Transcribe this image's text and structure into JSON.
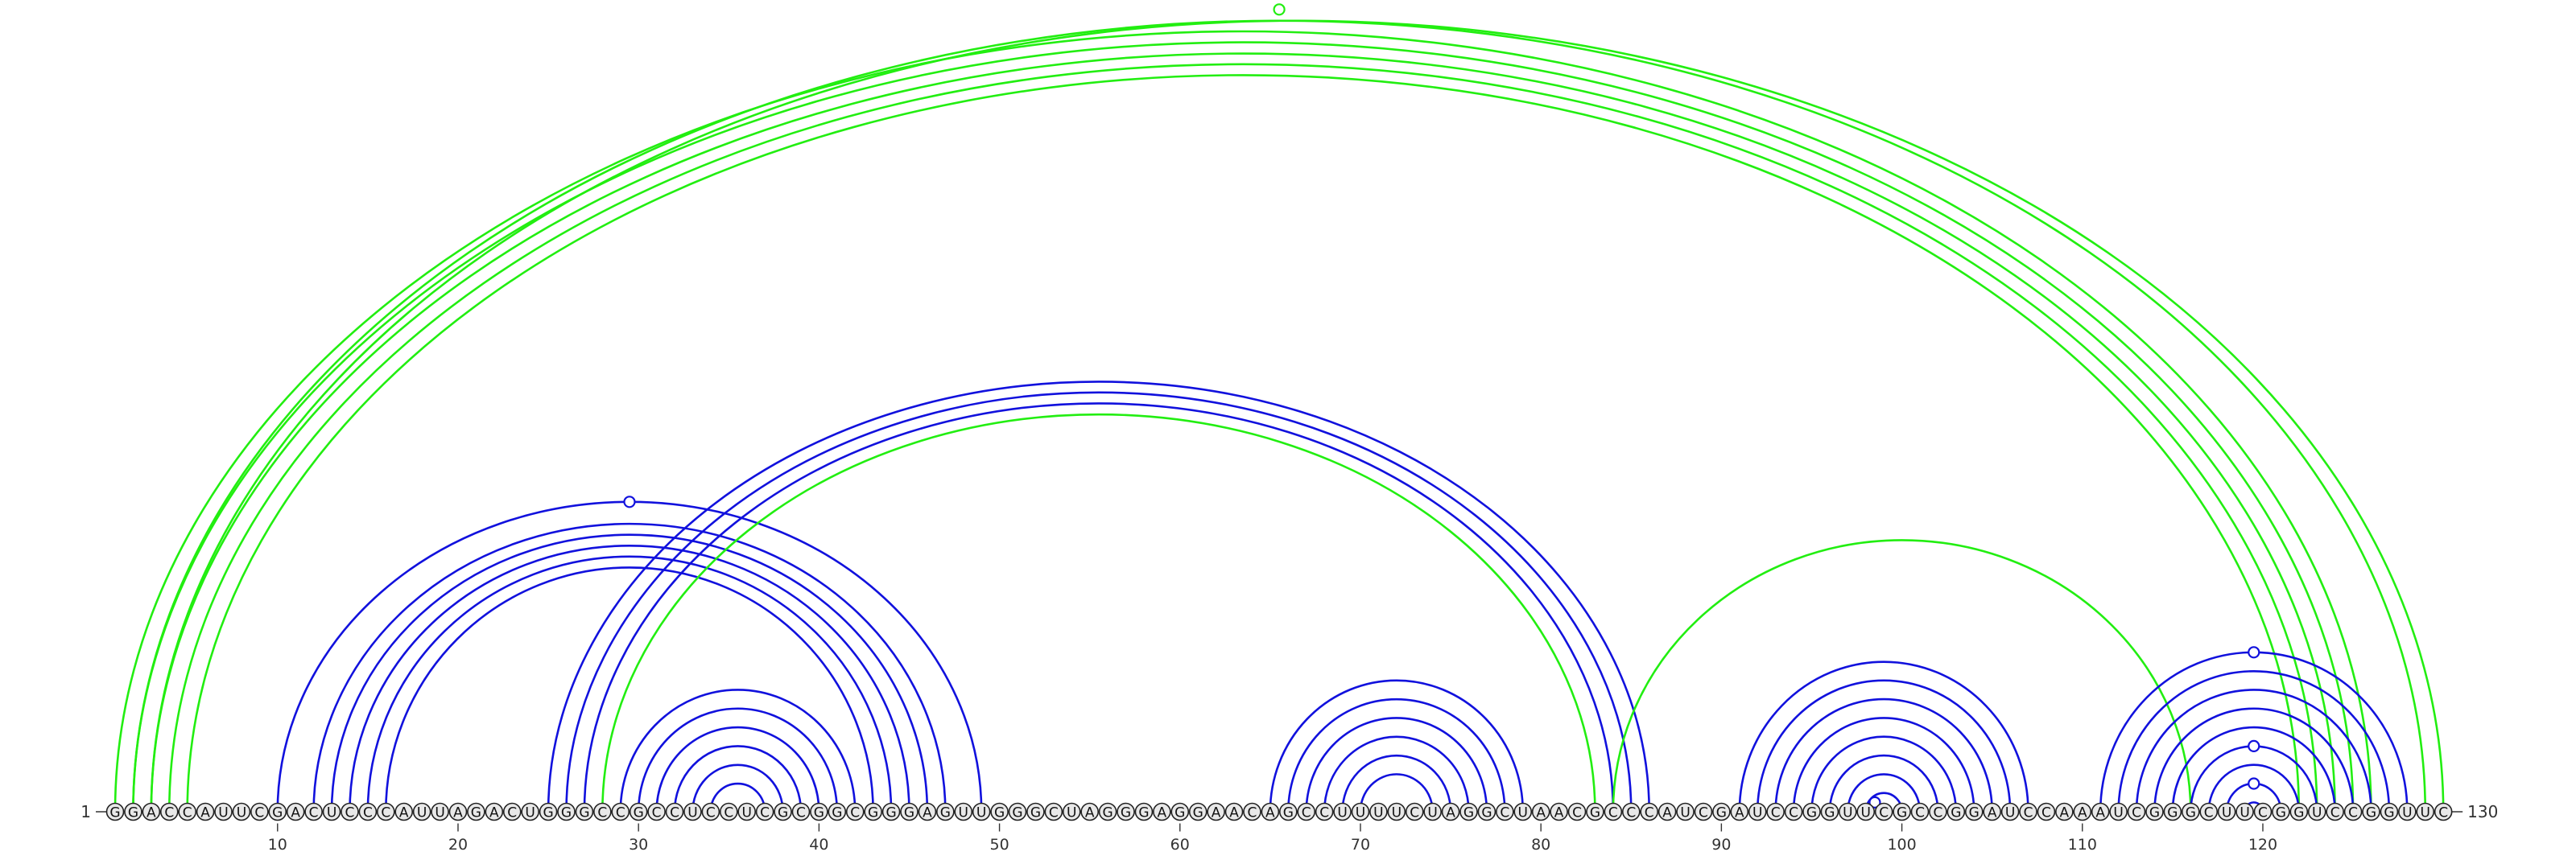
{
  "diagram": {
    "sequence": "GGACCAUUCGACUCCCAUUAGACUGGGCCGCCUCCUCGCGGCGGGAGUUGGGCUAGGGAGGAACAGCCUUUUCUAGGCUAACGCCCAUCGAUCCGGUUCGCCGGAUCCAAAUCGGGCUUCGGUCCGGUUC",
    "start_label": "1",
    "end_label": "130",
    "tick_labels": [
      "10",
      "20",
      "30",
      "40",
      "50",
      "60",
      "70",
      "80",
      "90",
      "100",
      "110",
      "120"
    ],
    "colors": {
      "green": "#22ee11",
      "blue": "#1111dd",
      "nucleotide_fill": "#e8e8e8",
      "nucleotide_stroke": "#222222"
    },
    "arc_groups": [
      {
        "color": "green",
        "arcs": [
          [
            1,
            126
          ],
          [
            2,
            125
          ],
          [
            3,
            124
          ],
          [
            4,
            123
          ],
          [
            5,
            122
          ]
        ]
      },
      {
        "color": "green",
        "arcs": [
          [
            2,
            129
          ],
          [
            3,
            130
          ]
        ]
      },
      {
        "color": "blue",
        "arcs": [
          [
            10,
            49
          ],
          [
            12,
            47
          ],
          [
            13,
            46
          ],
          [
            14,
            45
          ],
          [
            15,
            44
          ],
          [
            16,
            43
          ]
        ]
      },
      {
        "color": "blue",
        "arcs": [
          [
            25,
            86
          ],
          [
            26,
            85
          ],
          [
            27,
            84
          ]
        ]
      },
      {
        "color": "green",
        "arcs": [
          [
            28,
            83
          ]
        ]
      },
      {
        "color": "green",
        "arcs": [
          [
            84,
            116
          ]
        ]
      },
      {
        "color": "blue",
        "arcs": [
          [
            29,
            42
          ],
          [
            30,
            41
          ],
          [
            31,
            40
          ],
          [
            32,
            39
          ],
          [
            33,
            38
          ],
          [
            34,
            37
          ]
        ]
      },
      {
        "color": "blue",
        "arcs": [
          [
            65,
            79
          ],
          [
            66,
            78
          ],
          [
            67,
            77
          ],
          [
            68,
            76
          ],
          [
            69,
            75
          ],
          [
            70,
            74
          ]
        ]
      },
      {
        "color": "blue",
        "arcs": [
          [
            91,
            107
          ],
          [
            92,
            106
          ],
          [
            93,
            105
          ],
          [
            94,
            104
          ],
          [
            95,
            103
          ],
          [
            96,
            102
          ],
          [
            97,
            101
          ],
          [
            98,
            100
          ]
        ]
      },
      {
        "color": "blue",
        "arcs": [
          [
            111,
            128
          ],
          [
            112,
            127
          ],
          [
            113,
            126
          ],
          [
            114,
            125
          ],
          [
            115,
            124
          ],
          [
            116,
            123
          ],
          [
            117,
            122
          ],
          [
            118,
            121
          ],
          [
            119,
            120
          ]
        ]
      }
    ],
    "markers": [
      {
        "color": "green",
        "pos": 65.5,
        "arc": [
          1,
          130
        ]
      },
      {
        "color": "blue",
        "pos": 29.5,
        "arc": [
          10,
          49
        ]
      },
      {
        "color": "blue",
        "pos": 98.5,
        "arc": [
          98,
          99
        ]
      },
      {
        "color": "blue",
        "pos": 119.5,
        "arc": [
          111,
          128
        ]
      },
      {
        "color": "blue",
        "pos": 119.5,
        "arc": [
          116,
          123
        ]
      },
      {
        "color": "blue",
        "pos": 119.5,
        "arc": [
          118,
          121
        ]
      }
    ]
  }
}
